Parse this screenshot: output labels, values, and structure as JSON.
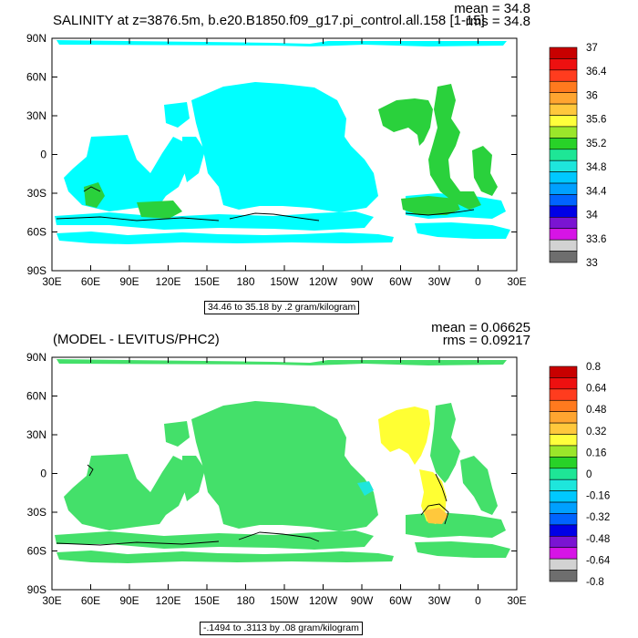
{
  "chart_data": [
    {
      "type": "heatmap",
      "title": "SALINITY at z=3876.5m, b.e20.B1850.f09_g17.pi_control.all.158 [1-15]",
      "stats": {
        "mean": "mean = 34.8",
        "rms": "rms = 34.8"
      },
      "contour_info": "34.46 to 35.18 by .2 gram/kilogram",
      "x_tick_labels": [
        "30E",
        "60E",
        "90E",
        "120E",
        "150E",
        "180",
        "150W",
        "120W",
        "90W",
        "60W",
        "30W",
        "0",
        "30E"
      ],
      "y_tick_labels": [
        "90N",
        "60N",
        "30N",
        "0",
        "30S",
        "60S",
        "90S"
      ],
      "xlim": [
        30,
        390
      ],
      "ylim": [
        -90,
        90
      ],
      "colorbar": {
        "labels": [
          "37",
          "36.4",
          "36",
          "35.6",
          "35.2",
          "34.8",
          "34.4",
          "34",
          "33.6",
          "33"
        ],
        "colors": [
          "#c80000",
          "#ee1010",
          "#ff3c1e",
          "#ff7a1e",
          "#ffa530",
          "#ffc83c",
          "#ffff3c",
          "#9be62a",
          "#28d228",
          "#1ee696",
          "#1ee6dc",
          "#00c8ff",
          "#00a0ff",
          "#0064ff",
          "#0000e6",
          "#7a14d2",
          "#d614e6",
          "#d2d2d2",
          "#6e6e6e"
        ]
      },
      "regions": [
        {
          "value": 34.8,
          "color": "#00ffff"
        },
        {
          "value": 35.2,
          "color": "#2ad13c"
        }
      ]
    },
    {
      "type": "heatmap",
      "title": "(MODEL - LEVITUS/PHC2)",
      "stats": {
        "mean": "mean = 0.06625",
        "rms": "rms = 0.09217"
      },
      "contour_info": "-.1494 to .3113 by .08 gram/kilogram",
      "x_tick_labels": [
        "30E",
        "60E",
        "90E",
        "120E",
        "150E",
        "180",
        "150W",
        "120W",
        "90W",
        "60W",
        "30W",
        "0",
        "30E"
      ],
      "y_tick_labels": [
        "90N",
        "60N",
        "30N",
        "0",
        "30S",
        "60S",
        "90S"
      ],
      "xlim": [
        30,
        390
      ],
      "ylim": [
        -90,
        90
      ],
      "colorbar": {
        "labels": [
          "0.8",
          "0.64",
          "0.48",
          "0.32",
          "0.16",
          "0",
          "-0.16",
          "-0.32",
          "-0.48",
          "-0.64",
          "-0.8"
        ],
        "colors": [
          "#c80000",
          "#ee1010",
          "#ff3c1e",
          "#ff7a1e",
          "#ffa530",
          "#ffc83c",
          "#ffff3c",
          "#9be62a",
          "#28d228",
          "#1ee696",
          "#1ee6dc",
          "#00c8ff",
          "#00a0ff",
          "#0064ff",
          "#0000e6",
          "#7a14d2",
          "#d614e6",
          "#d2d2d2",
          "#6e6e6e"
        ]
      },
      "regions": [
        {
          "value": 0.08,
          "color": "#44e06a"
        },
        {
          "value": 0.24,
          "color": "#ffff33"
        },
        {
          "value": 0.4,
          "color": "#ffc83c"
        },
        {
          "value": -0.08,
          "color": "#1ee6dc"
        }
      ]
    }
  ]
}
